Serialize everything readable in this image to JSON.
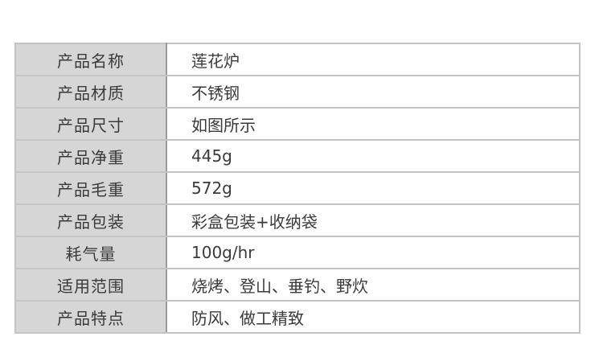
{
  "spec_table": {
    "rows": [
      {
        "label": "产品名称",
        "value": "莲花炉"
      },
      {
        "label": "产品材质",
        "value": "不锈钢"
      },
      {
        "label": "产品尺寸",
        "value": "如图所示"
      },
      {
        "label": "产品净重",
        "value": "445g"
      },
      {
        "label": "产品毛重",
        "value": "572g"
      },
      {
        "label": "产品包装",
        "value": "彩盒包装+收纳袋"
      },
      {
        "label": "耗气量",
        "value": "100g/hr"
      },
      {
        "label": "适用范围",
        "value": "烧烤、登山、垂钓、野炊"
      },
      {
        "label": "产品特点",
        "value": "防风、做工精致"
      }
    ]
  }
}
